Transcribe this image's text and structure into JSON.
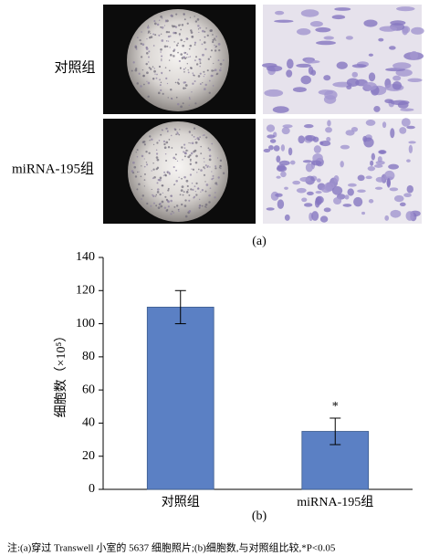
{
  "figure": {
    "row_labels": [
      "对照组",
      "miRNA-195组"
    ],
    "panel_a_label": "(a)",
    "panel_b_label": "(b)",
    "note": "注:(a)穿过 Transwell 小室的 5637 细胞照片;(b)细胞数,与对照组比较,*P<0.05"
  },
  "chart_data": {
    "type": "bar",
    "y_label": "细胞数（×10⁵）",
    "categories": [
      "对照组",
      "miRNA-195组"
    ],
    "values": [
      110,
      35
    ],
    "errors": [
      10,
      8
    ],
    "significance_labels": [
      null,
      "*"
    ],
    "color": "#5b80c4",
    "ylim": [
      0,
      140
    ],
    "yticks": [
      0,
      20,
      40,
      60,
      80,
      100,
      120,
      140
    ],
    "grid": false
  }
}
